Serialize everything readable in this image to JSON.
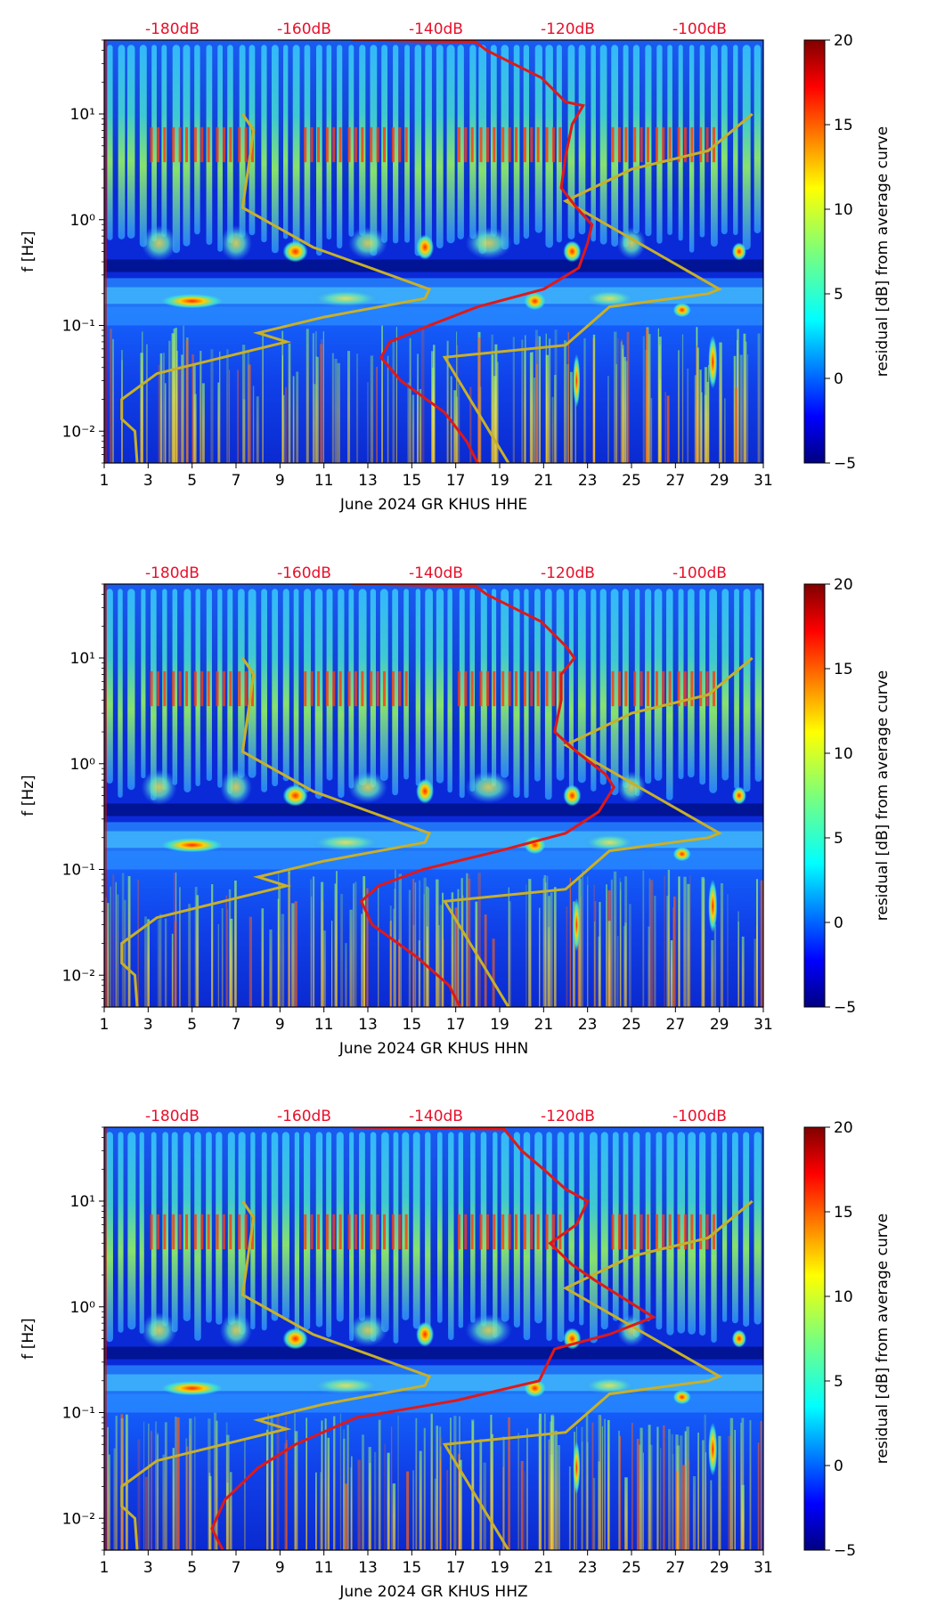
{
  "chart_data": {
    "x_range": [
      1,
      31
    ],
    "x_ticks": [
      1,
      3,
      5,
      7,
      9,
      11,
      13,
      15,
      17,
      19,
      21,
      23,
      25,
      27,
      29,
      31
    ],
    "y_range": [
      0.005,
      50
    ],
    "y_scale": "log",
    "y_tick_labels": [
      "10⁻²",
      "10⁻¹",
      "10⁰",
      "10¹"
    ],
    "y_tick_values": [
      0.01,
      0.1,
      1,
      10
    ],
    "ylabel": "f [Hz]",
    "top_axis_labels": [
      "-180dB",
      "-160dB",
      "-140dB",
      "-120dB",
      "-100dB"
    ],
    "top_axis_days": [
      4.1,
      10.1,
      16.1,
      22.1,
      28.1
    ],
    "colorbar": {
      "label": "residual [dB] from average curve",
      "range": [
        -5,
        20
      ],
      "ticks": [
        -5,
        0,
        5,
        10,
        15,
        20
      ],
      "tick_labels": [
        "−5",
        "0",
        "5",
        "10",
        "15",
        "20"
      ]
    },
    "yellow_curve": [
      [
        7.3,
        10
      ],
      [
        7.8,
        7
      ],
      [
        7.3,
        1.3
      ],
      [
        10.5,
        0.55
      ],
      [
        15.8,
        0.22
      ],
      [
        15.6,
        0.18
      ],
      [
        11,
        0.12
      ],
      [
        8,
        0.085
      ],
      [
        9.3,
        0.07
      ],
      [
        3.4,
        0.035
      ],
      [
        1.8,
        0.02
      ],
      [
        1.8,
        0.013
      ],
      [
        2.4,
        0.01
      ],
      [
        2.5,
        0.005
      ]
    ],
    "yellow_curve2": [
      [
        19.4,
        0.005
      ],
      [
        16.5,
        0.05
      ],
      [
        22,
        0.065
      ],
      [
        24,
        0.15
      ],
      [
        28.5,
        0.2
      ],
      [
        29,
        0.22
      ],
      [
        22,
        1.5
      ],
      [
        25,
        3
      ],
      [
        28.5,
        4.5
      ],
      [
        30.5,
        10
      ]
    ],
    "panels": [
      {
        "type": "heatmap",
        "xlabel": "June 2024 GR KHUS  HHE",
        "red_curve": [
          [
            12.3,
            50
          ],
          [
            17.9,
            48
          ],
          [
            18.4,
            40
          ],
          [
            19.6,
            30
          ],
          [
            20.9,
            22
          ],
          [
            22,
            13
          ],
          [
            22.8,
            12
          ],
          [
            22.3,
            8
          ],
          [
            22,
            4
          ],
          [
            21.8,
            2
          ],
          [
            22.5,
            1.3
          ],
          [
            23.2,
            0.9
          ],
          [
            23,
            0.6
          ],
          [
            22.6,
            0.35
          ],
          [
            21,
            0.22
          ],
          [
            18,
            0.15
          ],
          [
            15.8,
            0.1
          ],
          [
            14,
            0.07
          ],
          [
            13.6,
            0.05
          ],
          [
            14.5,
            0.03
          ],
          [
            16.5,
            0.015
          ],
          [
            17.5,
            0.008
          ],
          [
            18,
            0.005
          ]
        ]
      },
      {
        "type": "heatmap",
        "xlabel": "June 2024 GR KHUS  HHN",
        "red_curve": [
          [
            12.3,
            50
          ],
          [
            17.9,
            48
          ],
          [
            18.4,
            40
          ],
          [
            19.6,
            30
          ],
          [
            20.9,
            22
          ],
          [
            22,
            13
          ],
          [
            22.4,
            10
          ],
          [
            21.8,
            7
          ],
          [
            21.8,
            4
          ],
          [
            21.5,
            2
          ],
          [
            22.5,
            1.3
          ],
          [
            23.8,
            0.8
          ],
          [
            24.2,
            0.6
          ],
          [
            23.5,
            0.35
          ],
          [
            22,
            0.22
          ],
          [
            19,
            0.15
          ],
          [
            15.5,
            0.1
          ],
          [
            13.5,
            0.07
          ],
          [
            12.7,
            0.05
          ],
          [
            13.2,
            0.03
          ],
          [
            15.2,
            0.015
          ],
          [
            16.7,
            0.008
          ],
          [
            17.2,
            0.005
          ]
        ]
      },
      {
        "type": "heatmap",
        "xlabel": "June 2024 GR KHUS  HHZ",
        "red_curve": [
          [
            12.3,
            50
          ],
          [
            19.2,
            48
          ],
          [
            20,
            30
          ],
          [
            21,
            20
          ],
          [
            22,
            13
          ],
          [
            23,
            10
          ],
          [
            22.5,
            6
          ],
          [
            21.3,
            4
          ],
          [
            22.3,
            2.5
          ],
          [
            23.3,
            1.8
          ],
          [
            26,
            0.8
          ],
          [
            24,
            0.55
          ],
          [
            21.5,
            0.4
          ],
          [
            20.8,
            0.2
          ],
          [
            17,
            0.13
          ],
          [
            12.5,
            0.09
          ],
          [
            9.7,
            0.05
          ],
          [
            8,
            0.03
          ],
          [
            6.5,
            0.015
          ],
          [
            5.9,
            0.008
          ],
          [
            6.4,
            0.005
          ]
        ]
      }
    ]
  }
}
